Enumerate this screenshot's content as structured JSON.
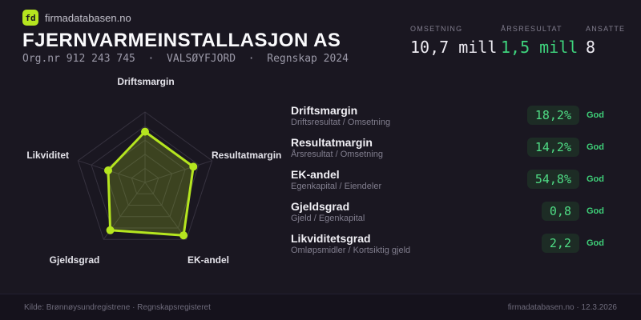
{
  "brand": {
    "logo_text": "fd",
    "site_name": "firmadatabasen.no"
  },
  "header": {
    "title": "FJERNVARMEINSTALLASJON AS",
    "subtitle": "Org.nr 912 243 745  ·  VALSØYFJORD  ·  Regnskap 2024"
  },
  "key_stats": [
    {
      "label": "OMSETNING",
      "value": "10,7 mill"
    },
    {
      "label": "ÅRSRESULTAT",
      "value": "1,5 mill"
    },
    {
      "label": "ANSATTE",
      "value": "8"
    }
  ],
  "chart_data": {
    "type": "radar",
    "title": "",
    "axes": [
      "Driftsmargin",
      "Resultatmargin",
      "EK-andel",
      "Gjeldsgrad",
      "Likviditet"
    ],
    "values_normalized": [
      0.72,
      0.72,
      0.93,
      0.84,
      0.55
    ],
    "axis_metric_values": [
      "18,2%",
      "14,2%",
      "54,8%",
      "0,8",
      "2,2"
    ],
    "levels": 5,
    "max": 1,
    "grid": "pentagon-web",
    "stroke_color": "#b5e51f",
    "fill_color": "rgba(181,229,31,0.22)",
    "grid_color": "#36323f"
  },
  "metrics": [
    {
      "name": "Driftsmargin",
      "formula": "Driftsresultat / Omsetning",
      "value": "18,2%",
      "rating": "God"
    },
    {
      "name": "Resultatmargin",
      "formula": "Årsresultat / Omsetning",
      "value": "14,2%",
      "rating": "God"
    },
    {
      "name": "EK-andel",
      "formula": "Egenkapital / Eiendeler",
      "value": "54,8%",
      "rating": "God"
    },
    {
      "name": "Gjeldsgrad",
      "formula": "Gjeld / Egenkapital",
      "value": "0,8",
      "rating": "God"
    },
    {
      "name": "Likviditetsgrad",
      "formula": "Omløpsmidler / Kortsiktig gjeld",
      "value": "2,2",
      "rating": "God"
    }
  ],
  "footer": {
    "source": "Kilde: Brønnøysundregistrene · Regnskapsregisteret",
    "attribution": "firmadatabasen.no · 12.3.2026"
  },
  "colors": {
    "background": "#1a1721",
    "accent_lime": "#b5e51f",
    "positive_green": "#3ed47d",
    "pill_background": "#1d2c25"
  }
}
